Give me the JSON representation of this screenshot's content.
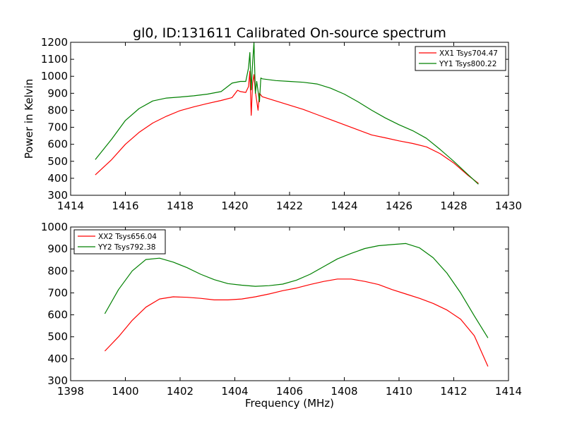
{
  "figure": {
    "title": "gl0, ID:131611 Calibrated On-source spectrum",
    "xlabel": "Frequency (MHz)"
  },
  "chart_data": [
    {
      "type": "line",
      "title": "gl0, ID:131611 Calibrated On-source spectrum",
      "xlabel": "",
      "ylabel": "Power in Kelvin",
      "xlim": [
        1414,
        1430
      ],
      "ylim": [
        300,
        1200
      ],
      "xticks": [
        1414,
        1416,
        1418,
        1420,
        1422,
        1424,
        1426,
        1428,
        1430
      ],
      "yticks": [
        300,
        400,
        500,
        600,
        700,
        800,
        900,
        1000,
        1100,
        1200
      ],
      "grid": false,
      "legend_position": "top-right",
      "series": [
        {
          "name": "XX1 Tsys704.47",
          "color": "#ff0000",
          "points": [
            [
              1414.9,
              420
            ],
            [
              1415.5,
              510
            ],
            [
              1416.0,
              600
            ],
            [
              1416.5,
              670
            ],
            [
              1417.0,
              725
            ],
            [
              1417.5,
              765
            ],
            [
              1418.0,
              798
            ],
            [
              1418.5,
              820
            ],
            [
              1419.0,
              840
            ],
            [
              1419.5,
              858
            ],
            [
              1419.9,
              875
            ],
            [
              1420.1,
              918
            ],
            [
              1420.2,
              910
            ],
            [
              1420.4,
              905
            ],
            [
              1420.5,
              940
            ],
            [
              1420.55,
              1030
            ],
            [
              1420.6,
              770
            ],
            [
              1420.65,
              960
            ],
            [
              1420.7,
              1010
            ],
            [
              1420.75,
              910
            ],
            [
              1420.85,
              800
            ],
            [
              1420.9,
              900
            ],
            [
              1421.0,
              880
            ],
            [
              1421.5,
              855
            ],
            [
              1422.0,
              830
            ],
            [
              1422.5,
              805
            ],
            [
              1423.0,
              775
            ],
            [
              1423.5,
              745
            ],
            [
              1424.0,
              715
            ],
            [
              1424.5,
              685
            ],
            [
              1425.0,
              655
            ],
            [
              1425.5,
              638
            ],
            [
              1426.0,
              620
            ],
            [
              1426.5,
              605
            ],
            [
              1427.0,
              585
            ],
            [
              1427.5,
              545
            ],
            [
              1428.0,
              490
            ],
            [
              1428.5,
              420
            ],
            [
              1428.9,
              370
            ]
          ]
        },
        {
          "name": "YY1 Tsys800.22",
          "color": "#008000",
          "points": [
            [
              1414.9,
              510
            ],
            [
              1415.5,
              630
            ],
            [
              1416.0,
              740
            ],
            [
              1416.5,
              810
            ],
            [
              1417.0,
              855
            ],
            [
              1417.5,
              872
            ],
            [
              1418.0,
              878
            ],
            [
              1418.5,
              885
            ],
            [
              1419.0,
              895
            ],
            [
              1419.5,
              910
            ],
            [
              1419.9,
              960
            ],
            [
              1420.2,
              970
            ],
            [
              1420.4,
              970
            ],
            [
              1420.5,
              1050
            ],
            [
              1420.55,
              1140
            ],
            [
              1420.6,
              920
            ],
            [
              1420.65,
              1080
            ],
            [
              1420.7,
              1200
            ],
            [
              1420.75,
              900
            ],
            [
              1420.8,
              970
            ],
            [
              1420.9,
              850
            ],
            [
              1420.95,
              990
            ],
            [
              1421.0,
              985
            ],
            [
              1421.5,
              975
            ],
            [
              1422.0,
              970
            ],
            [
              1422.5,
              965
            ],
            [
              1423.0,
              955
            ],
            [
              1423.5,
              930
            ],
            [
              1424.0,
              895
            ],
            [
              1424.5,
              850
            ],
            [
              1425.0,
              800
            ],
            [
              1425.5,
              755
            ],
            [
              1426.0,
              715
            ],
            [
              1426.5,
              680
            ],
            [
              1427.0,
              635
            ],
            [
              1427.5,
              570
            ],
            [
              1428.0,
              500
            ],
            [
              1428.5,
              425
            ],
            [
              1428.9,
              365
            ]
          ]
        }
      ]
    },
    {
      "type": "line",
      "title": "",
      "xlabel": "Frequency (MHz)",
      "ylabel": "",
      "xlim": [
        1398,
        1414
      ],
      "ylim": [
        300,
        1000
      ],
      "xticks": [
        1398,
        1400,
        1402,
        1404,
        1406,
        1408,
        1410,
        1412,
        1414
      ],
      "yticks": [
        300,
        400,
        500,
        600,
        700,
        800,
        900,
        1000
      ],
      "grid": false,
      "legend_position": "top-left",
      "series": [
        {
          "name": "XX2 Tsys656.04",
          "color": "#ff0000",
          "points": [
            [
              1399.25,
              435
            ],
            [
              1399.75,
              500
            ],
            [
              1400.25,
              575
            ],
            [
              1400.75,
              635
            ],
            [
              1401.25,
              672
            ],
            [
              1401.75,
              682
            ],
            [
              1402.25,
              680
            ],
            [
              1402.75,
              675
            ],
            [
              1403.25,
              668
            ],
            [
              1403.75,
              668
            ],
            [
              1404.25,
              672
            ],
            [
              1404.75,
              682
            ],
            [
              1405.25,
              695
            ],
            [
              1405.75,
              710
            ],
            [
              1406.25,
              722
            ],
            [
              1406.75,
              738
            ],
            [
              1407.25,
              752
            ],
            [
              1407.75,
              763
            ],
            [
              1408.25,
              763
            ],
            [
              1408.75,
              752
            ],
            [
              1409.25,
              738
            ],
            [
              1409.75,
              715
            ],
            [
              1410.25,
              695
            ],
            [
              1410.75,
              675
            ],
            [
              1411.25,
              652
            ],
            [
              1411.75,
              622
            ],
            [
              1412.25,
              580
            ],
            [
              1412.75,
              505
            ],
            [
              1413.25,
              365
            ]
          ]
        },
        {
          "name": "YY2 Tsys792.38",
          "color": "#008000",
          "points": [
            [
              1399.25,
              605
            ],
            [
              1399.75,
              715
            ],
            [
              1400.25,
              800
            ],
            [
              1400.75,
              852
            ],
            [
              1401.25,
              858
            ],
            [
              1401.75,
              840
            ],
            [
              1402.25,
              815
            ],
            [
              1402.75,
              785
            ],
            [
              1403.25,
              760
            ],
            [
              1403.75,
              742
            ],
            [
              1404.25,
              735
            ],
            [
              1404.75,
              730
            ],
            [
              1405.25,
              733
            ],
            [
              1405.75,
              740
            ],
            [
              1406.25,
              758
            ],
            [
              1406.75,
              785
            ],
            [
              1407.25,
              820
            ],
            [
              1407.75,
              855
            ],
            [
              1408.25,
              880
            ],
            [
              1408.75,
              902
            ],
            [
              1409.25,
              915
            ],
            [
              1409.75,
              920
            ],
            [
              1410.25,
              925
            ],
            [
              1410.75,
              905
            ],
            [
              1411.25,
              860
            ],
            [
              1411.75,
              790
            ],
            [
              1412.25,
              700
            ],
            [
              1412.75,
              595
            ],
            [
              1413.25,
              495
            ]
          ]
        }
      ]
    }
  ]
}
